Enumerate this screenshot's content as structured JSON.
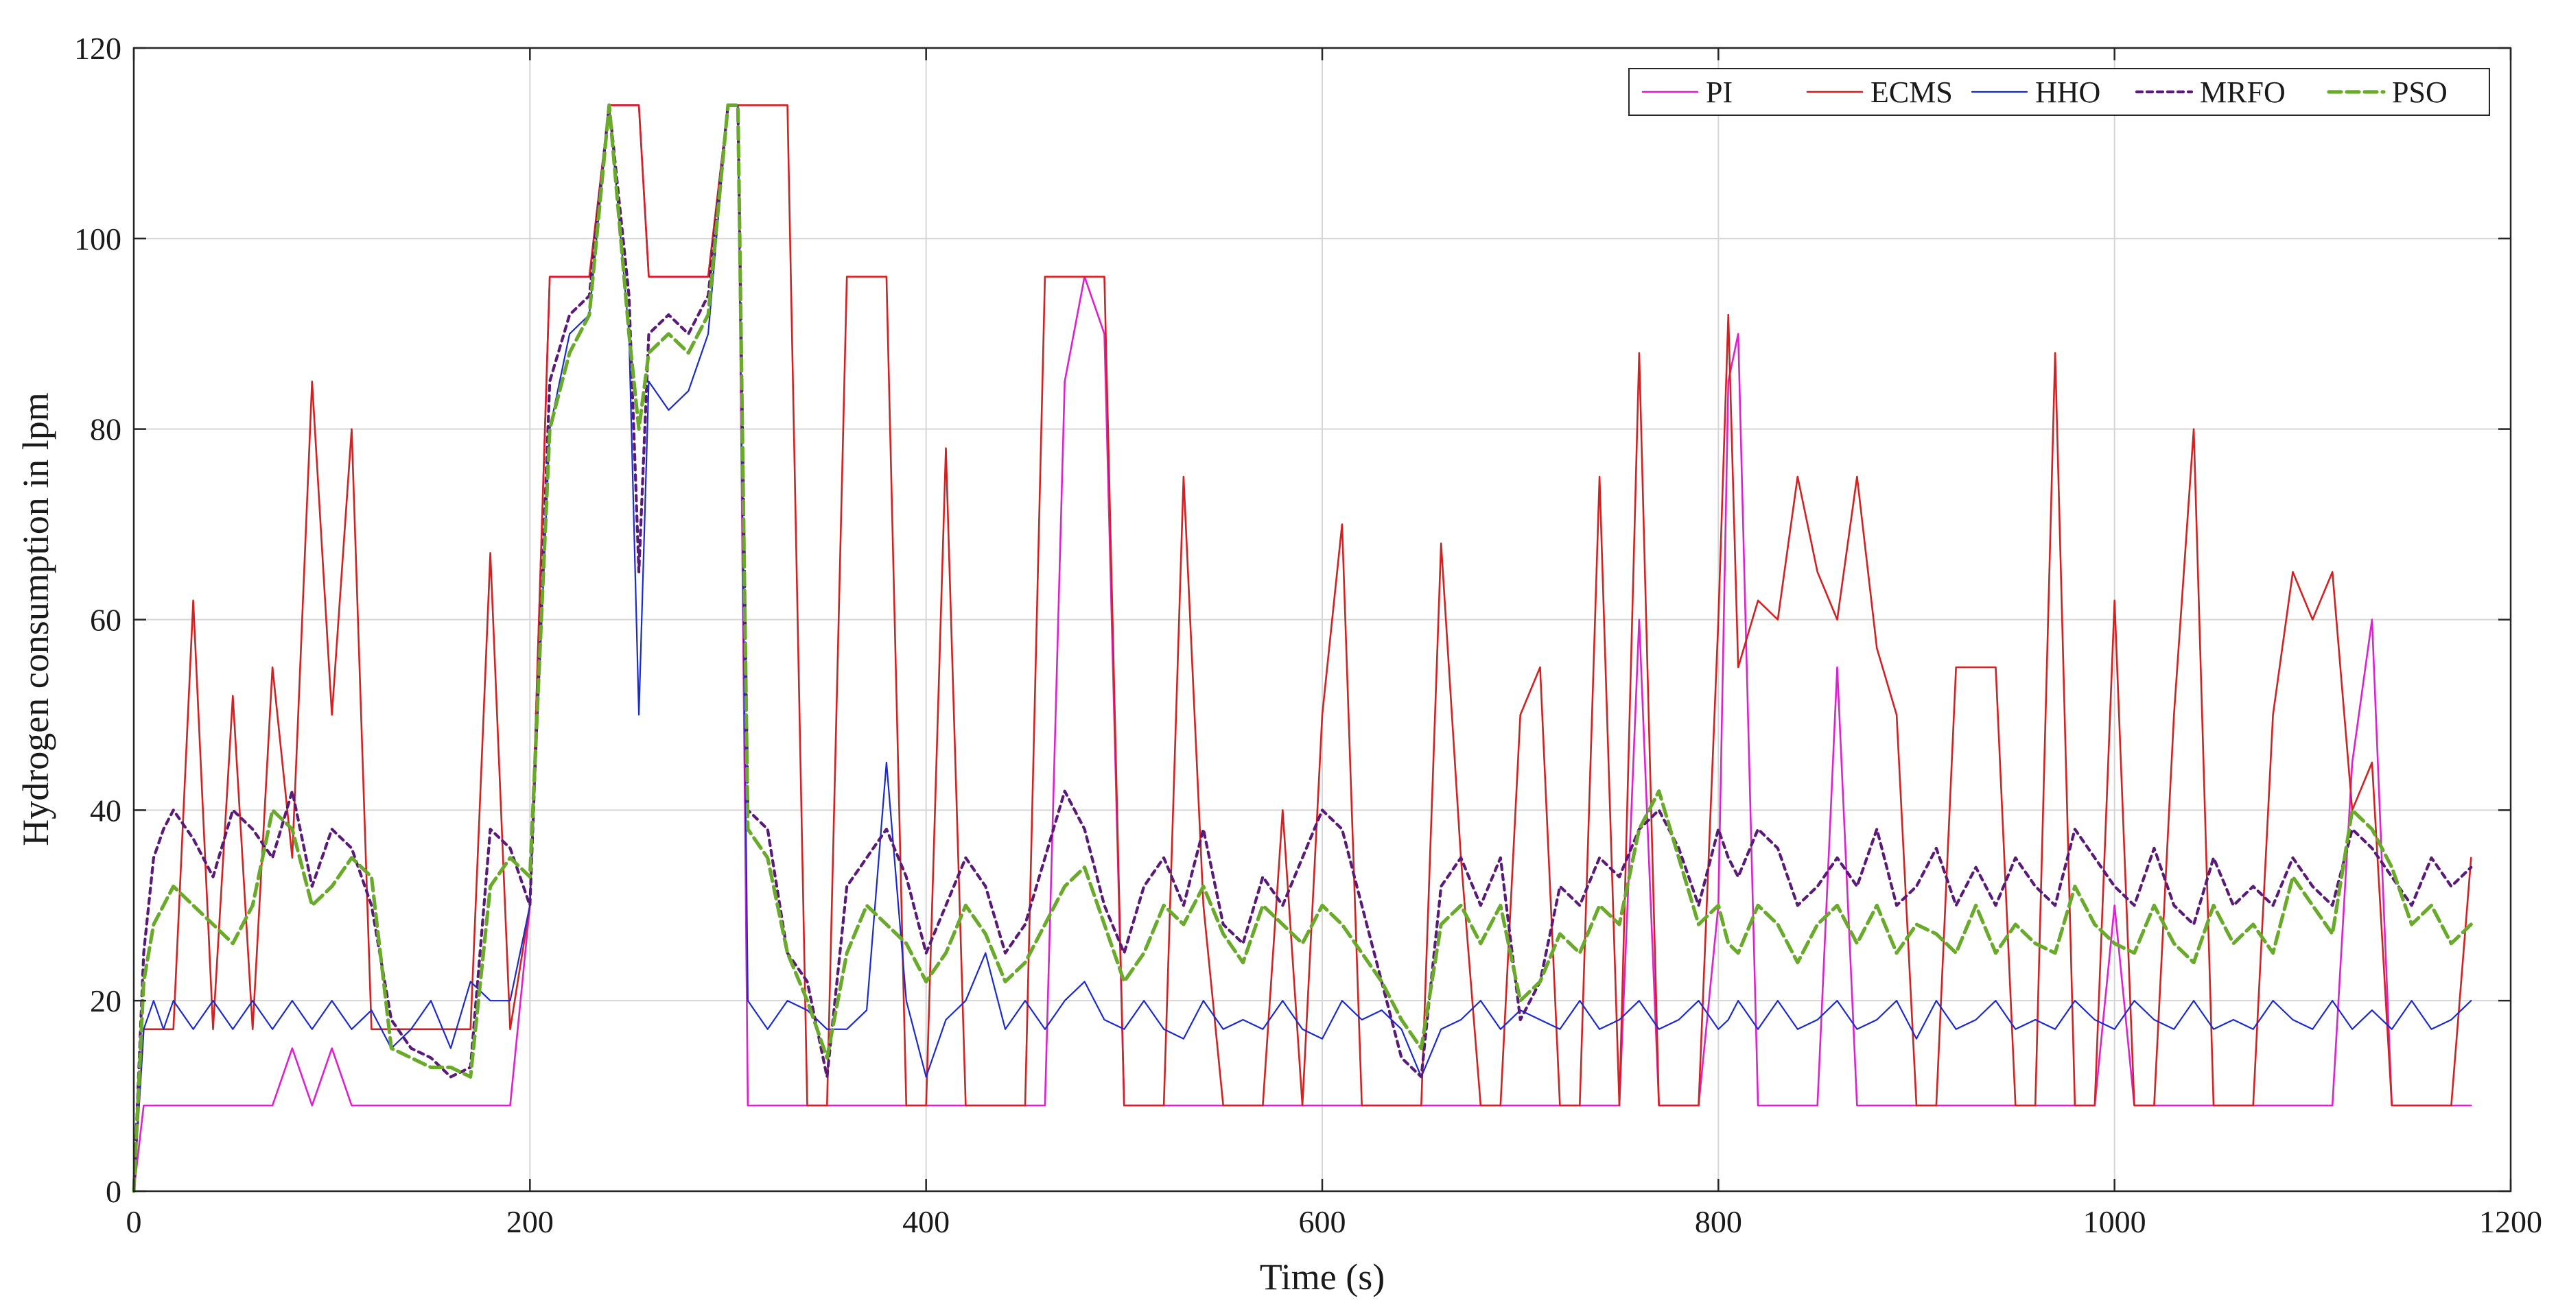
{
  "chart_data": {
    "type": "line",
    "title": "",
    "xlabel": "Time (s)",
    "ylabel": "Hydrogen consumption in lpm",
    "xlim": [
      0,
      1200
    ],
    "ylim": [
      0,
      120
    ],
    "xticks": [
      0,
      200,
      400,
      600,
      800,
      1000,
      1200
    ],
    "yticks": [
      0,
      20,
      40,
      60,
      80,
      100,
      120
    ],
    "xtick_labels": [
      "0",
      "200",
      "400",
      "600",
      "800",
      "1000",
      "1200"
    ],
    "ytick_labels": [
      "0",
      "20",
      "40",
      "60",
      "80",
      "100",
      "120"
    ],
    "grid": true,
    "legend_position": "top-right",
    "x": [
      0,
      5,
      10,
      15,
      20,
      30,
      40,
      50,
      60,
      70,
      80,
      90,
      100,
      110,
      120,
      130,
      140,
      150,
      160,
      170,
      180,
      190,
      200,
      210,
      220,
      230,
      240,
      250,
      255,
      260,
      270,
      280,
      290,
      300,
      305,
      310,
      320,
      330,
      340,
      350,
      360,
      370,
      380,
      390,
      400,
      410,
      420,
      430,
      440,
      450,
      460,
      470,
      480,
      490,
      500,
      510,
      520,
      530,
      540,
      550,
      560,
      570,
      580,
      590,
      600,
      610,
      620,
      630,
      640,
      650,
      660,
      670,
      680,
      690,
      700,
      710,
      720,
      730,
      740,
      750,
      760,
      770,
      780,
      790,
      800,
      805,
      810,
      820,
      830,
      840,
      850,
      860,
      870,
      880,
      890,
      900,
      910,
      920,
      930,
      940,
      950,
      960,
      970,
      980,
      990,
      1000,
      1010,
      1020,
      1030,
      1040,
      1050,
      1060,
      1070,
      1080,
      1090,
      1100,
      1110,
      1120,
      1130,
      1140,
      1150,
      1160,
      1170,
      1180
    ],
    "series": [
      {
        "name": "PI",
        "color": "#e020d0",
        "width": 2.6,
        "dash": "",
        "values": [
          0,
          9,
          9,
          9,
          9,
          9,
          9,
          9,
          9,
          9,
          15,
          9,
          15,
          9,
          9,
          9,
          9,
          9,
          9,
          9,
          9,
          9,
          30,
          96,
          96,
          96,
          114,
          114,
          114,
          96,
          96,
          96,
          96,
          114,
          114,
          9,
          9,
          9,
          9,
          9,
          9,
          9,
          9,
          9,
          9,
          9,
          9,
          9,
          9,
          9,
          9,
          85,
          96,
          90,
          9,
          9,
          9,
          9,
          9,
          9,
          9,
          9,
          9,
          9,
          9,
          9,
          9,
          9,
          9,
          9,
          9,
          9,
          9,
          9,
          9,
          9,
          9,
          9,
          9,
          9,
          60,
          9,
          9,
          9,
          30,
          85,
          90,
          9,
          9,
          9,
          9,
          55,
          9,
          9,
          9,
          9,
          9,
          9,
          9,
          9,
          9,
          9,
          9,
          9,
          9,
          30,
          9,
          9,
          9,
          9,
          9,
          9,
          9,
          9,
          9,
          9,
          9,
          45,
          60,
          9,
          9,
          9,
          9,
          9
        ]
      },
      {
        "name": "ECMS",
        "color": "#d42020",
        "width": 2.6,
        "dash": "",
        "values": [
          0,
          17,
          17,
          17,
          17,
          62,
          17,
          52,
          17,
          55,
          35,
          85,
          50,
          80,
          17,
          17,
          17,
          17,
          17,
          17,
          67,
          17,
          30,
          96,
          96,
          96,
          114,
          114,
          114,
          96,
          96,
          96,
          96,
          114,
          114,
          114,
          114,
          114,
          9,
          9,
          96,
          96,
          96,
          9,
          9,
          78,
          9,
          9,
          9,
          9,
          96,
          96,
          96,
          96,
          9,
          9,
          9,
          75,
          30,
          9,
          9,
          9,
          40,
          9,
          50,
          70,
          9,
          9,
          9,
          9,
          68,
          35,
          9,
          9,
          50,
          55,
          9,
          9,
          75,
          9,
          88,
          9,
          9,
          9,
          60,
          92,
          55,
          62,
          60,
          75,
          65,
          60,
          75,
          57,
          50,
          9,
          9,
          55,
          55,
          55,
          9,
          9,
          88,
          9,
          9,
          62,
          9,
          9,
          50,
          80,
          9,
          9,
          9,
          50,
          65,
          60,
          65,
          40,
          45,
          9,
          9,
          9,
          9,
          35
        ]
      },
      {
        "name": "HHO",
        "color": "#1a2ad0",
        "width": 2.2,
        "dash": "",
        "values": [
          0,
          17,
          20,
          17,
          20,
          17,
          20,
          17,
          20,
          17,
          20,
          17,
          20,
          17,
          19,
          15,
          17,
          20,
          15,
          22,
          20,
          20,
          30,
          80,
          90,
          92,
          114,
          90,
          50,
          85,
          82,
          84,
          90,
          114,
          114,
          20,
          17,
          20,
          19,
          17,
          17,
          19,
          45,
          20,
          12,
          18,
          20,
          25,
          17,
          20,
          17,
          20,
          22,
          18,
          17,
          20,
          17,
          16,
          20,
          17,
          18,
          17,
          20,
          17,
          16,
          20,
          18,
          19,
          17,
          12,
          17,
          18,
          20,
          17,
          19,
          18,
          17,
          20,
          17,
          18,
          20,
          17,
          18,
          20,
          17,
          18,
          20,
          17,
          20,
          17,
          18,
          20,
          17,
          18,
          20,
          16,
          20,
          17,
          18,
          20,
          17,
          18,
          17,
          20,
          18,
          17,
          20,
          18,
          17,
          20,
          17,
          18,
          17,
          20,
          18,
          17,
          20,
          17,
          19,
          17,
          20,
          17,
          18,
          20
        ]
      },
      {
        "name": "MRFO",
        "color": "#5a1a78",
        "width": 4.2,
        "dash": "8 7",
        "values": [
          0,
          25,
          35,
          38,
          40,
          37,
          33,
          40,
          38,
          35,
          42,
          32,
          38,
          36,
          30,
          18,
          15,
          14,
          12,
          13,
          38,
          36,
          30,
          85,
          92,
          94,
          114,
          94,
          65,
          90,
          92,
          90,
          94,
          114,
          114,
          40,
          38,
          25,
          22,
          12,
          32,
          35,
          38,
          33,
          25,
          30,
          35,
          32,
          25,
          28,
          35,
          42,
          38,
          30,
          25,
          32,
          35,
          30,
          38,
          28,
          26,
          33,
          30,
          35,
          40,
          38,
          30,
          22,
          14,
          12,
          32,
          35,
          30,
          35,
          18,
          22,
          32,
          30,
          35,
          33,
          38,
          40,
          36,
          30,
          38,
          35,
          33,
          38,
          36,
          30,
          32,
          35,
          32,
          38,
          30,
          32,
          36,
          30,
          34,
          30,
          35,
          32,
          30,
          38,
          35,
          32,
          30,
          36,
          30,
          28,
          35,
          30,
          32,
          30,
          35,
          32,
          30,
          38,
          36,
          33,
          30,
          35,
          32,
          34
        ]
      },
      {
        "name": "PSO",
        "color": "#6aaa2a",
        "width": 5.2,
        "dash": "18 8",
        "values": [
          0,
          22,
          28,
          30,
          32,
          30,
          28,
          26,
          30,
          40,
          38,
          30,
          32,
          35,
          33,
          15,
          14,
          13,
          13,
          12,
          32,
          35,
          33,
          80,
          88,
          92,
          114,
          90,
          80,
          88,
          90,
          88,
          92,
          114,
          114,
          38,
          35,
          25,
          20,
          14,
          25,
          30,
          28,
          26,
          22,
          25,
          30,
          27,
          22,
          24,
          28,
          32,
          34,
          28,
          22,
          25,
          30,
          28,
          32,
          27,
          24,
          30,
          28,
          26,
          30,
          28,
          25,
          22,
          18,
          15,
          28,
          30,
          26,
          30,
          20,
          22,
          27,
          25,
          30,
          28,
          38,
          42,
          35,
          28,
          30,
          26,
          25,
          30,
          28,
          24,
          28,
          30,
          26,
          30,
          25,
          28,
          27,
          25,
          30,
          25,
          28,
          26,
          25,
          32,
          28,
          26,
          25,
          30,
          26,
          24,
          30,
          26,
          28,
          25,
          33,
          30,
          27,
          40,
          38,
          34,
          28,
          30,
          26,
          28
        ]
      }
    ]
  }
}
